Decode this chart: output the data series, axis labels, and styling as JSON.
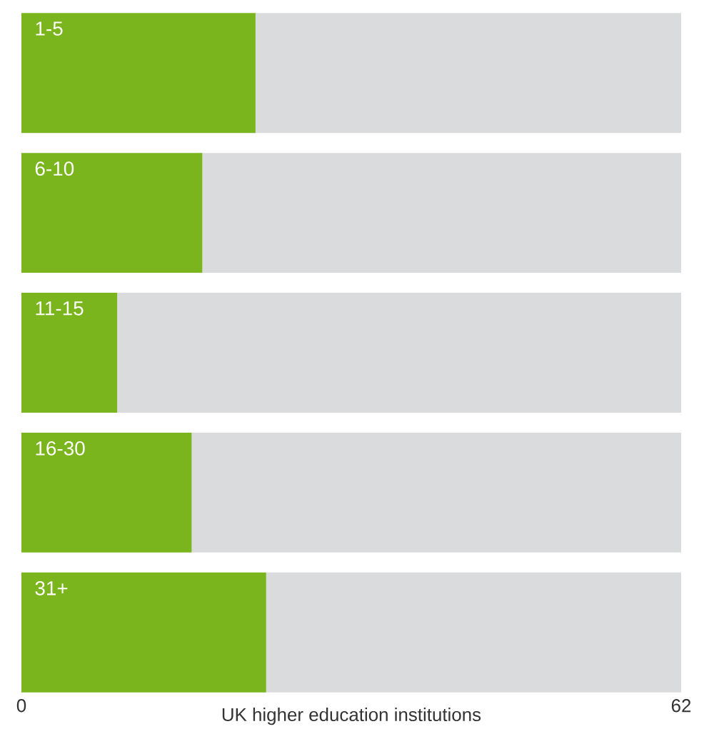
{
  "chart_data": {
    "type": "bar",
    "orientation": "horizontal",
    "stacked": true,
    "xlabel": "UK higher education institutions",
    "categories": [
      "1-5",
      "6-10",
      "11-15",
      "16-30",
      "31+"
    ],
    "series": [
      {
        "color": "#7ab51d",
        "values": [
          22,
          17,
          9,
          16,
          23
        ]
      },
      {
        "color": "#dadbdc",
        "values": [
          40,
          45,
          53,
          46,
          39
        ]
      }
    ],
    "xlim": [
      0,
      62
    ],
    "xticks": [
      0,
      62
    ]
  }
}
